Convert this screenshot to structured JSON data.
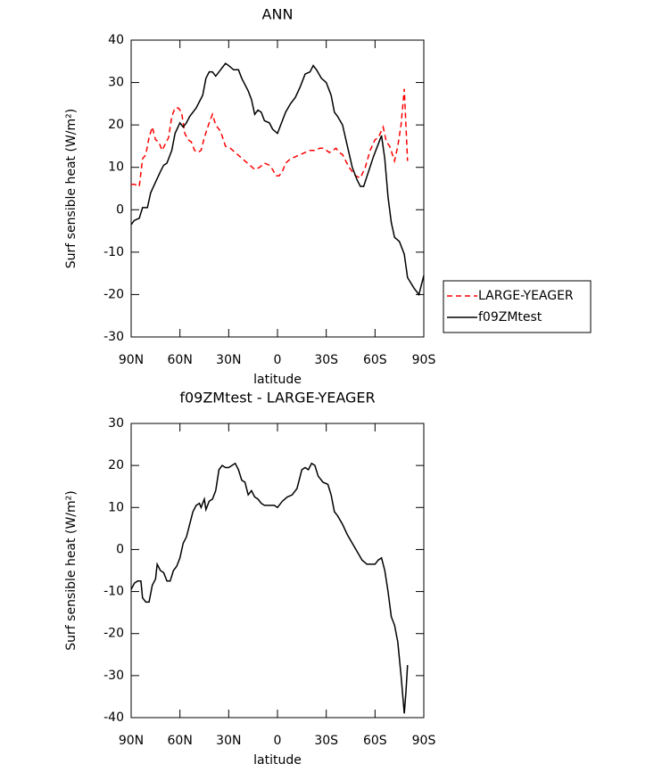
{
  "chart_data": [
    {
      "type": "line",
      "title": "ANN",
      "xlabel": "latitude",
      "ylabel": "Surf sensible heat (W/m²)",
      "xlim": [
        90,
        -90
      ],
      "ylim": [
        -30,
        40
      ],
      "xticks": [
        {
          "value": 90,
          "label": "90N"
        },
        {
          "value": 60,
          "label": "60N"
        },
        {
          "value": 30,
          "label": "30N"
        },
        0,
        {
          "value": -30,
          "label": "30S"
        },
        {
          "value": -60,
          "label": "60S"
        },
        {
          "value": -90,
          "label": "90S"
        }
      ],
      "yticks": [
        -30,
        -20,
        -10,
        0,
        10,
        20,
        30,
        40
      ],
      "legend": "outside-right",
      "series": [
        {
          "name": "LARGE-YEAGER",
          "color": "#ff0000",
          "line_style": "dashed",
          "x": [
            90,
            88,
            85,
            83,
            81,
            79,
            77,
            75,
            73,
            71,
            69,
            67,
            65,
            63,
            61,
            59,
            57,
            55,
            53,
            51,
            49,
            47,
            45,
            42,
            40,
            38,
            35,
            32,
            29,
            26,
            23,
            20,
            17,
            14,
            11,
            8,
            5,
            3,
            1,
            -1,
            -3,
            -5,
            -8,
            -11,
            -14,
            -17,
            -20,
            -23,
            -26,
            -28,
            -30,
            -32,
            -34,
            -36,
            -38,
            -40,
            -44,
            -48,
            -51,
            -54,
            -57,
            -60,
            -62,
            -65,
            -67,
            -69,
            -72,
            -74,
            -76,
            -78,
            -79,
            -80
          ],
          "values": [
            6,
            6,
            5.5,
            12,
            13,
            17,
            19.5,
            16.5,
            16,
            14,
            15.5,
            17,
            22,
            24,
            24,
            23,
            18,
            16.5,
            16,
            14,
            13.5,
            14,
            17,
            20.5,
            22.5,
            20,
            18.5,
            15,
            14.5,
            13.5,
            12.5,
            11.5,
            10.5,
            9.5,
            10,
            11,
            10.5,
            9.5,
            8,
            8,
            9,
            11,
            12,
            12.5,
            13,
            13.5,
            14,
            14,
            14.5,
            14.5,
            14,
            13.5,
            14,
            14.5,
            13.5,
            13,
            10,
            8,
            7.5,
            10,
            14,
            16.5,
            17,
            19.5,
            16,
            15,
            11.5,
            15,
            20,
            28.5,
            20,
            11.5
          ]
        },
        {
          "name": "f09ZMtest",
          "color": "#000000",
          "line_style": "solid",
          "x": [
            90,
            88,
            85,
            83,
            80,
            78,
            75,
            72,
            70,
            68,
            65,
            63,
            60,
            58,
            56,
            54,
            50,
            46,
            44,
            42,
            40,
            38,
            35,
            32,
            30,
            27,
            24,
            22,
            18,
            16,
            14,
            12,
            10,
            8,
            5,
            3,
            0,
            -3,
            -5,
            -8,
            -11,
            -14,
            -17,
            -20,
            -22,
            -24,
            -27,
            -30,
            -33,
            -35,
            -37,
            -40,
            -43,
            -46,
            -49,
            -51,
            -53,
            -56,
            -59,
            -62,
            -64,
            -66,
            -68,
            -70,
            -72,
            -75,
            -78,
            -80,
            -84,
            -87,
            -90
          ],
          "values": [
            -3.5,
            -2.5,
            -2,
            0.5,
            0.5,
            4,
            6.5,
            9,
            10.5,
            11,
            14,
            18,
            20.5,
            19.5,
            20.5,
            22,
            24,
            27,
            31,
            32.5,
            32.5,
            31.5,
            33,
            34.5,
            34,
            33,
            33,
            31,
            28,
            26,
            22.5,
            23.5,
            23,
            21,
            20.5,
            19,
            18,
            21,
            23,
            25,
            26.5,
            29,
            32,
            32.5,
            34,
            33,
            31,
            30,
            27,
            23,
            22,
            20,
            15,
            10,
            7,
            5.5,
            5.5,
            9,
            12.5,
            15.5,
            17.5,
            12,
            3,
            -3,
            -6.5,
            -7.5,
            -10.5,
            -16,
            -18.5,
            -20,
            -15.5
          ]
        }
      ]
    },
    {
      "type": "line",
      "title": "f09ZMtest - LARGE-YEAGER",
      "xlabel": "latitude",
      "ylabel": "Surf sensible heat (W/m²)",
      "xlim": [
        90,
        -90
      ],
      "ylim": [
        -40,
        30
      ],
      "xticks": [
        {
          "value": 90,
          "label": "90N"
        },
        {
          "value": 60,
          "label": "60N"
        },
        {
          "value": 30,
          "label": "30N"
        },
        0,
        {
          "value": -30,
          "label": "30S"
        },
        {
          "value": -60,
          "label": "60S"
        },
        {
          "value": -90,
          "label": "90S"
        }
      ],
      "yticks": [
        -40,
        -30,
        -20,
        -10,
        0,
        10,
        20,
        30
      ],
      "series": [
        {
          "color": "#000000",
          "line_style": "solid",
          "x": [
            90,
            88,
            86,
            84,
            83,
            81,
            79,
            77,
            75,
            74,
            72,
            70,
            68,
            66,
            64,
            62,
            60,
            58,
            56,
            54,
            52,
            50,
            48,
            47,
            45,
            44,
            42,
            40,
            38,
            36,
            34,
            32,
            30,
            28,
            26,
            24,
            22,
            20,
            18,
            16,
            14,
            12,
            10,
            8,
            5,
            2,
            0,
            -3,
            -6,
            -9,
            -12,
            -15,
            -17,
            -19,
            -21,
            -23,
            -25,
            -28,
            -31,
            -33,
            -35,
            -37,
            -40,
            -43,
            -46,
            -49,
            -52,
            -55,
            -58,
            -60,
            -62,
            -64,
            -66,
            -68,
            -70,
            -72,
            -74,
            -76,
            -78,
            -79,
            -80
          ],
          "values": [
            -9.5,
            -8,
            -7.5,
            -7.5,
            -11.5,
            -12.5,
            -12.5,
            -8.5,
            -7,
            -3.5,
            -5,
            -5.5,
            -7.5,
            -7.5,
            -5,
            -4,
            -2,
            1.5,
            3,
            6,
            9,
            10.5,
            11,
            10,
            12,
            9.5,
            11.5,
            12,
            14,
            19,
            20,
            19.5,
            19.5,
            20,
            20.5,
            19,
            16.5,
            16,
            13,
            14,
            12.5,
            12,
            11,
            10.5,
            10.5,
            10.5,
            10,
            11.5,
            12.5,
            13,
            14.5,
            19,
            19.5,
            19,
            20.5,
            20,
            17.5,
            16,
            15.5,
            13,
            9,
            8,
            6,
            3.5,
            1.5,
            -0.5,
            -2.5,
            -3.5,
            -3.5,
            -3.5,
            -2.5,
            -2,
            -5,
            -10,
            -16,
            -18,
            -22,
            -30,
            -39,
            -34,
            -27.5
          ]
        }
      ]
    }
  ]
}
